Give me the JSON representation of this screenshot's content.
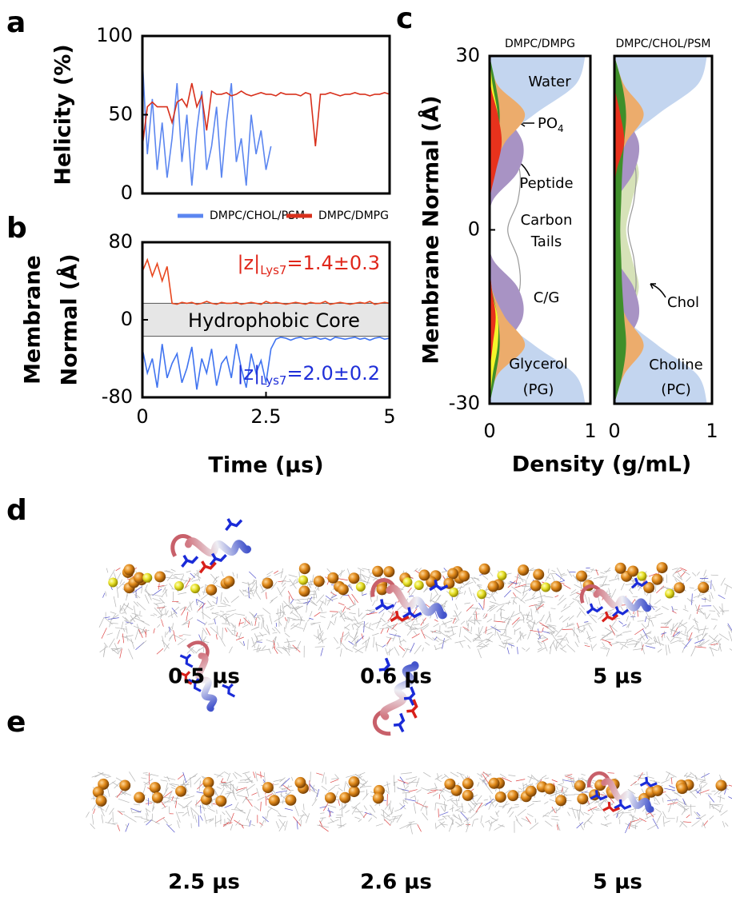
{
  "panel_labels": [
    "a",
    "b",
    "c",
    "d",
    "e"
  ],
  "chart_data": [
    {
      "type": "line",
      "ylabel": "Helicity (%)",
      "xlim": [
        0,
        5
      ],
      "ylim": [
        0,
        100
      ],
      "yticks": [
        0,
        50,
        100
      ],
      "x": [
        0,
        0.1,
        0.2,
        0.3,
        0.4,
        0.5,
        0.6,
        0.7,
        0.8,
        0.9,
        1,
        1.1,
        1.2,
        1.3,
        1.4,
        1.5,
        1.6,
        1.7,
        1.8,
        1.9,
        2,
        2.1,
        2.2,
        2.3,
        2.4,
        2.5,
        2.6,
        2.7,
        2.8,
        2.9,
        3,
        3.1,
        3.2,
        3.3,
        3.4,
        3.5,
        3.6,
        3.7,
        3.8,
        3.9,
        4,
        4.1,
        4.2,
        4.3,
        4.4,
        4.5,
        4.6,
        4.7,
        4.8,
        4.9,
        5
      ],
      "series": [
        {
          "name": "DMPC/CHOL/PSM",
          "color": "#5b86f0",
          "values": [
            85,
            25,
            60,
            15,
            45,
            10,
            35,
            70,
            20,
            50,
            5,
            40,
            65,
            15,
            30,
            55,
            10,
            45,
            70,
            20,
            35,
            5,
            50,
            25,
            40,
            15,
            30,
            null,
            null,
            null,
            null,
            null,
            null,
            null,
            null,
            null,
            null,
            null,
            null,
            null,
            null,
            null,
            null,
            null,
            null,
            null,
            null,
            null,
            null,
            null,
            null
          ]
        },
        {
          "name": "DMPC/DMPG",
          "color": "#d8301c",
          "values": [
            30,
            55,
            58,
            55,
            55,
            55,
            45,
            58,
            60,
            55,
            70,
            55,
            62,
            40,
            65,
            63,
            63,
            64,
            62,
            63,
            65,
            63,
            62,
            63,
            64,
            63,
            63,
            62,
            64,
            63,
            63,
            63,
            62,
            64,
            63,
            30,
            63,
            63,
            64,
            63,
            62,
            63,
            63,
            64,
            63,
            63,
            62,
            63,
            63,
            64,
            63
          ]
        }
      ]
    },
    {
      "type": "line",
      "ylabel": [
        "Membrane",
        "Normal (Å)"
      ],
      "xlabel": "Time (µs)",
      "xlim": [
        0,
        5
      ],
      "ylim": [
        -80,
        80
      ],
      "yticks": [
        -80,
        0,
        80
      ],
      "xticks": [
        0,
        2.5,
        5
      ],
      "shaded_region": {
        "label": "Hydrophobic Core",
        "range": [
          -17,
          17
        ],
        "color": "#e6e6e6"
      },
      "annotations": [
        {
          "parts": [
            "|z|",
            "Lys7",
            "=1.4±0.3"
          ],
          "color": "#e0261a"
        },
        {
          "parts": [
            "|z|",
            "Lys7",
            "=2.0±0.2"
          ],
          "color": "#1f2fd8"
        }
      ],
      "x": [
        0,
        0.1,
        0.2,
        0.3,
        0.4,
        0.5,
        0.6,
        0.7,
        0.8,
        0.9,
        1,
        1.1,
        1.2,
        1.3,
        1.4,
        1.5,
        1.6,
        1.7,
        1.8,
        1.9,
        2,
        2.1,
        2.2,
        2.3,
        2.4,
        2.5,
        2.6,
        2.7,
        2.8,
        2.9,
        3,
        3.1,
        3.2,
        3.3,
        3.4,
        3.5,
        3.6,
        3.7,
        3.8,
        3.9,
        4,
        4.1,
        4.2,
        4.3,
        4.4,
        4.5,
        4.6,
        4.7,
        4.8,
        4.9,
        5
      ],
      "series": [
        {
          "color": "#e8471f",
          "values": [
            50,
            62,
            45,
            58,
            40,
            55,
            17,
            16,
            18,
            17,
            18,
            16,
            17,
            19,
            17,
            16,
            18,
            17,
            17,
            18,
            16,
            17,
            18,
            17,
            16,
            19,
            17,
            18,
            17,
            16,
            17,
            18,
            17,
            16,
            18,
            17,
            17,
            19,
            16,
            17,
            18,
            17,
            16,
            17,
            18,
            17,
            19,
            16,
            17,
            18,
            17
          ]
        },
        {
          "color": "#3f73f0",
          "values": [
            -30,
            -55,
            -40,
            -70,
            -25,
            -60,
            -45,
            -35,
            -65,
            -50,
            -28,
            -72,
            -40,
            -55,
            -30,
            -68,
            -45,
            -38,
            -60,
            -25,
            -50,
            -70,
            -35,
            -55,
            -42,
            -65,
            -30,
            -20,
            -18,
            -19,
            -21,
            -19,
            -18,
            -20,
            -19,
            -18,
            -20,
            -19,
            -21,
            -18,
            -19,
            -20,
            -19,
            -18,
            -20,
            -19,
            -21,
            -19,
            -18,
            -20,
            -19
          ]
        }
      ]
    },
    {
      "type": "profile",
      "title": "DMPC/DMPG",
      "ylabel": "Membrane Normal (Å)",
      "xlabel": "Density (g/mL)",
      "xlim": [
        0,
        1
      ],
      "ylim": [
        -30,
        30
      ],
      "yticks": [
        -30,
        0,
        30
      ],
      "xticks": [
        0,
        1
      ],
      "y": [
        -30,
        -25,
        -20,
        -15,
        -10,
        -5,
        0,
        5,
        10,
        15,
        20,
        25,
        30
      ],
      "series": [
        {
          "color": "#c3d5ef",
          "style": "area",
          "values": [
            0.95,
            0.85,
            0.45,
            0.1,
            0.02,
            0,
            0,
            0,
            0.02,
            0.1,
            0.45,
            0.85,
            0.95
          ]
        },
        {
          "color": "#999999",
          "style": "line",
          "values": [
            0,
            0,
            0.05,
            0.2,
            0.3,
            0.28,
            0.18,
            0.28,
            0.3,
            0.2,
            0.05,
            0,
            0
          ]
        },
        {
          "color": "#a893c4",
          "style": "area",
          "values": [
            0,
            0,
            0.15,
            0.33,
            0.28,
            0.03,
            0,
            0.03,
            0.28,
            0.33,
            0.15,
            0,
            0
          ]
        },
        {
          "color": "#ecac6c",
          "style": "area",
          "values": [
            0,
            0.08,
            0.35,
            0.15,
            0.02,
            0,
            0,
            0,
            0.02,
            0.15,
            0.35,
            0.08,
            0
          ]
        },
        {
          "color": "#3f8f2a",
          "style": "area",
          "values": [
            0,
            0.06,
            0.1,
            0.08,
            0.02,
            0,
            0,
            0,
            0.02,
            0.08,
            0.1,
            0.06,
            0
          ]
        },
        {
          "color": "#f5f52a",
          "style": "area",
          "values": [
            0,
            0.03,
            0.08,
            0.08,
            0.01,
            0,
            0,
            0,
            0.01,
            0.08,
            0.08,
            0.03,
            0
          ]
        },
        {
          "color": "#e8321c",
          "style": "area",
          "values": [
            0,
            0,
            0.03,
            0.06,
            0.02,
            0,
            0,
            0,
            0.06,
            0.12,
            0.08,
            0.01,
            0
          ]
        }
      ],
      "annotations": [
        {
          "text": "Water"
        },
        {
          "text": "PO",
          "sub": "4"
        },
        {
          "text": "Peptide"
        },
        {
          "text": "Carbon"
        },
        {
          "text": "Tails"
        },
        {
          "text": "C/G"
        },
        {
          "text": "Glycerol"
        },
        {
          "text": "(PG)"
        }
      ]
    },
    {
      "type": "profile",
      "title": "DMPC/CHOL/PSM",
      "xlim": [
        0,
        1
      ],
      "ylim": [
        -30,
        30
      ],
      "xticks": [
        0,
        1
      ],
      "y": [
        -30,
        -25,
        -20,
        -15,
        -10,
        -5,
        0,
        5,
        10,
        15,
        20,
        25,
        30
      ],
      "series": [
        {
          "color": "#c3d5ef",
          "style": "area",
          "values": [
            0.95,
            0.85,
            0.45,
            0.1,
            0.02,
            0,
            0,
            0,
            0.02,
            0.1,
            0.45,
            0.85,
            0.95
          ]
        },
        {
          "color": "#d6e2b8",
          "style": "area",
          "values": [
            0,
            0,
            0.05,
            0.15,
            0.25,
            0.18,
            0.12,
            0.18,
            0.25,
            0.15,
            0.05,
            0,
            0
          ]
        },
        {
          "color": "#999999",
          "style": "line",
          "values": [
            0,
            0,
            0.04,
            0.15,
            0.22,
            0.2,
            0.14,
            0.2,
            0.22,
            0.15,
            0.04,
            0,
            0
          ]
        },
        {
          "color": "#a893c4",
          "style": "area",
          "values": [
            0,
            0,
            0.1,
            0.25,
            0.2,
            0.02,
            0,
            0.02,
            0.2,
            0.25,
            0.1,
            0,
            0
          ]
        },
        {
          "color": "#ecac6c",
          "style": "area",
          "values": [
            0,
            0.1,
            0.3,
            0.12,
            0.02,
            0,
            0,
            0,
            0.02,
            0.12,
            0.3,
            0.1,
            0
          ]
        },
        {
          "color": "#3f8f2a",
          "style": "area",
          "values": [
            0,
            0.08,
            0.12,
            0.1,
            0.08,
            0.07,
            0.06,
            0.07,
            0.08,
            0.1,
            0.12,
            0.08,
            0
          ]
        },
        {
          "color": "#e8321c",
          "style": "area",
          "values": [
            0,
            0,
            0,
            0,
            0,
            0,
            0,
            0,
            0.02,
            0.1,
            0.06,
            0,
            0
          ]
        }
      ],
      "annotations": [
        {
          "text": "Chol"
        },
        {
          "text": "Choline"
        },
        {
          "text": "(PC)"
        }
      ]
    }
  ],
  "snapshots": {
    "d": [
      "0.5 µs",
      "0.6 µs",
      "5 µs"
    ],
    "e": [
      "2.5 µs",
      "2.6 µs",
      "5 µs"
    ]
  }
}
